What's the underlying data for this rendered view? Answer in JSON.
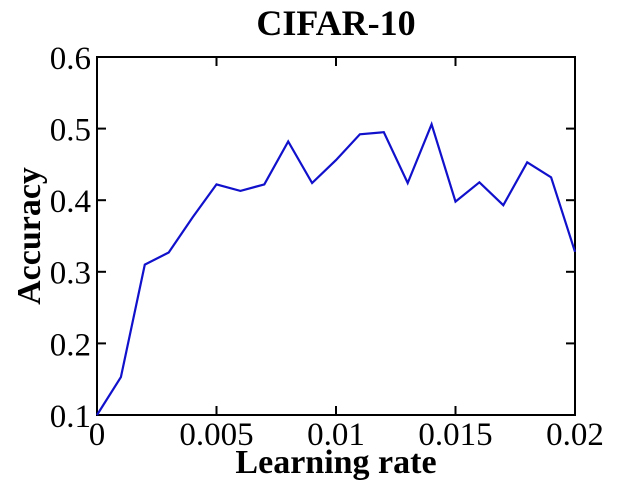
{
  "chart_data": {
    "type": "line",
    "title": "CIFAR-10",
    "xlabel": "Learning rate",
    "ylabel": "Accuracy",
    "x": [
      0,
      0.001,
      0.002,
      0.003,
      0.004,
      0.005,
      0.006,
      0.007,
      0.008,
      0.009,
      0.01,
      0.011,
      0.012,
      0.013,
      0.014,
      0.015,
      0.016,
      0.017,
      0.018,
      0.019,
      0.02
    ],
    "y": [
      0.1,
      0.153,
      0.31,
      0.327,
      0.376,
      0.422,
      0.413,
      0.422,
      0.482,
      0.424,
      0.456,
      0.492,
      0.495,
      0.424,
      0.506,
      0.398,
      0.425,
      0.393,
      0.453,
      0.432,
      0.328
    ],
    "xlim": [
      0,
      0.02
    ],
    "ylim": [
      0.1,
      0.6
    ],
    "xtick_values": [
      0,
      0.005,
      0.01,
      0.015,
      0.02
    ],
    "xtick_labels": [
      "0",
      "0.005",
      "0.01",
      "0.015",
      "0.02"
    ],
    "ytick_values": [
      0.1,
      0.2,
      0.3,
      0.4,
      0.5,
      0.6
    ],
    "ytick_labels": [
      "0.1",
      "0.2",
      "0.3",
      "0.4",
      "0.5",
      "0.6"
    ],
    "grid": false,
    "legend_position": "none",
    "line_color": "#1111cc",
    "axis_color": "#000000",
    "background_color": "#ffffff"
  }
}
